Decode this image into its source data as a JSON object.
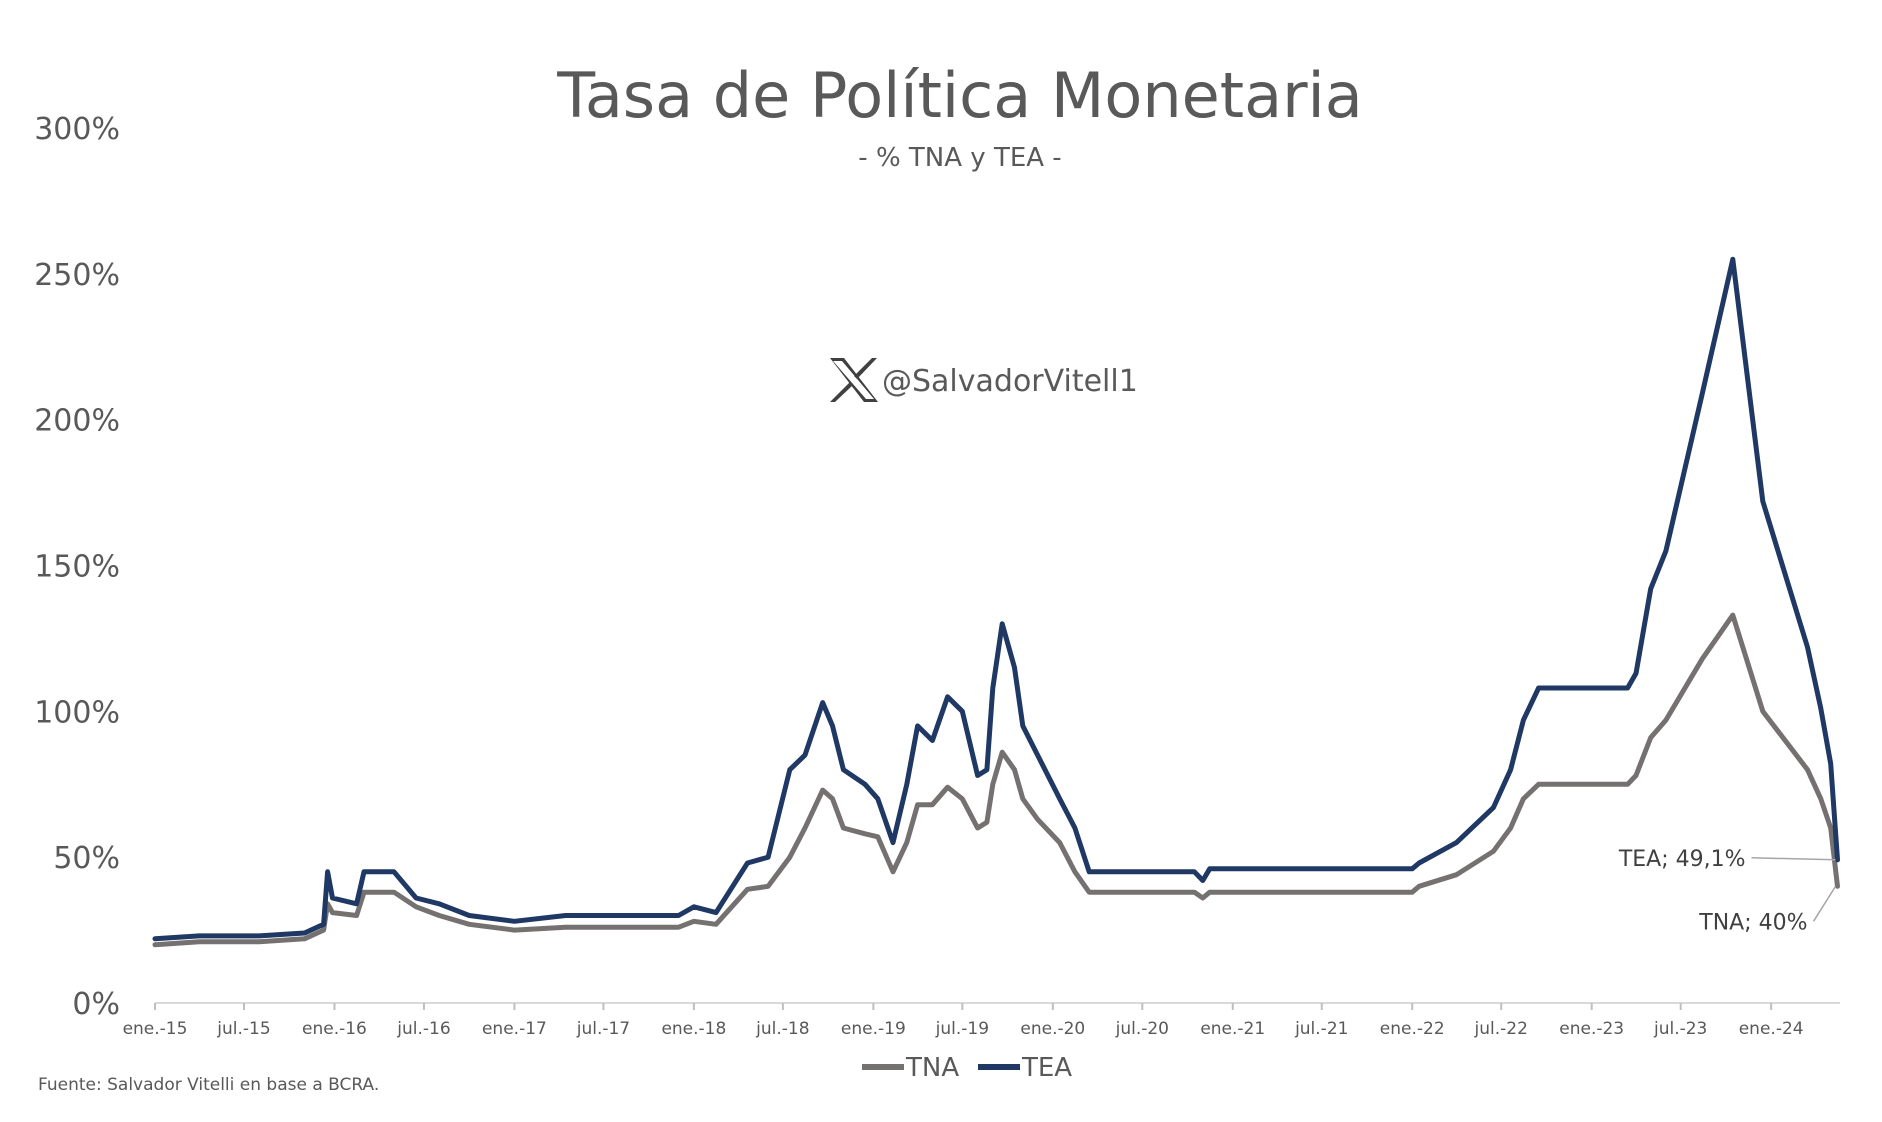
{
  "chart_data": {
    "type": "line",
    "title": "Tasa de Política Monetaria",
    "subtitle": "- % TNA y TEA -",
    "watermark": "@SalvadorVitell1",
    "watermark_icon": "x-logo-icon",
    "source": "Fuente: Salvador Vitelli en base a BCRA.",
    "ylim": [
      0,
      300
    ],
    "yticks": [
      0,
      50,
      100,
      150,
      200,
      250,
      300
    ],
    "ytick_labels": [
      "0%",
      "50%",
      "100%",
      "150%",
      "200%",
      "250%",
      "300%"
    ],
    "xlim": [
      "2015-01-01",
      "2024-05-20"
    ],
    "xticks": [
      {
        "date": "2015-01-01",
        "label": "ene.-15"
      },
      {
        "date": "2015-07-01",
        "label": "jul.-15"
      },
      {
        "date": "2016-01-01",
        "label": "ene.-16"
      },
      {
        "date": "2016-07-01",
        "label": "jul.-16"
      },
      {
        "date": "2017-01-01",
        "label": "ene.-17"
      },
      {
        "date": "2017-07-01",
        "label": "jul.-17"
      },
      {
        "date": "2018-01-01",
        "label": "ene.-18"
      },
      {
        "date": "2018-07-01",
        "label": "jul.-18"
      },
      {
        "date": "2019-01-01",
        "label": "ene.-19"
      },
      {
        "date": "2019-07-01",
        "label": "jul.-19"
      },
      {
        "date": "2020-01-01",
        "label": "ene.-20"
      },
      {
        "date": "2020-07-01",
        "label": "jul.-20"
      },
      {
        "date": "2021-01-01",
        "label": "ene.-21"
      },
      {
        "date": "2021-07-01",
        "label": "jul.-21"
      },
      {
        "date": "2022-01-01",
        "label": "ene.-22"
      },
      {
        "date": "2022-07-01",
        "label": "jul.-22"
      },
      {
        "date": "2023-01-01",
        "label": "ene.-23"
      },
      {
        "date": "2023-07-01",
        "label": "jul.-23"
      },
      {
        "date": "2024-01-01",
        "label": "ene.-24"
      }
    ],
    "legend_position": "bottom-center",
    "grid": false,
    "series": [
      {
        "name": "TNA",
        "color": "#767171",
        "points": [
          [
            "2015-01-01",
            20
          ],
          [
            "2015-04-01",
            21
          ],
          [
            "2015-08-01",
            21
          ],
          [
            "2015-11-01",
            22
          ],
          [
            "2015-12-10",
            25
          ],
          [
            "2015-12-18",
            34
          ],
          [
            "2015-12-28",
            31
          ],
          [
            "2016-02-15",
            30
          ],
          [
            "2016-03-01",
            38
          ],
          [
            "2016-05-01",
            38
          ],
          [
            "2016-06-15",
            33
          ],
          [
            "2016-08-01",
            30
          ],
          [
            "2016-10-01",
            27
          ],
          [
            "2017-01-01",
            25
          ],
          [
            "2017-04-15",
            26
          ],
          [
            "2017-12-01",
            26
          ],
          [
            "2018-01-01",
            28
          ],
          [
            "2018-02-15",
            27
          ],
          [
            "2018-04-20",
            39
          ],
          [
            "2018-06-01",
            40
          ],
          [
            "2018-07-15",
            50
          ],
          [
            "2018-08-15",
            60
          ],
          [
            "2018-09-20",
            73
          ],
          [
            "2018-10-10",
            70
          ],
          [
            "2018-11-01",
            60
          ],
          [
            "2018-12-15",
            58
          ],
          [
            "2019-01-10",
            57
          ],
          [
            "2019-02-10",
            45
          ],
          [
            "2019-03-10",
            55
          ],
          [
            "2019-04-01",
            68
          ],
          [
            "2019-05-01",
            68
          ],
          [
            "2019-06-01",
            74
          ],
          [
            "2019-07-01",
            70
          ],
          [
            "2019-08-01",
            60
          ],
          [
            "2019-08-20",
            62
          ],
          [
            "2019-09-01",
            75
          ],
          [
            "2019-09-20",
            86
          ],
          [
            "2019-10-15",
            80
          ],
          [
            "2019-11-01",
            70
          ],
          [
            "2019-12-01",
            63
          ],
          [
            "2020-01-15",
            55
          ],
          [
            "2020-02-15",
            45
          ],
          [
            "2020-03-15",
            38
          ],
          [
            "2020-10-15",
            38
          ],
          [
            "2020-11-01",
            36
          ],
          [
            "2020-11-15",
            38
          ],
          [
            "2022-01-01",
            38
          ],
          [
            "2022-01-15",
            40
          ],
          [
            "2022-04-01",
            44
          ],
          [
            "2022-06-15",
            52
          ],
          [
            "2022-07-20",
            60
          ],
          [
            "2022-08-15",
            70
          ],
          [
            "2022-09-15",
            75
          ],
          [
            "2023-03-15",
            75
          ],
          [
            "2023-04-01",
            78
          ],
          [
            "2023-05-01",
            91
          ],
          [
            "2023-06-01",
            97
          ],
          [
            "2023-08-14",
            118
          ],
          [
            "2023-10-15",
            133
          ],
          [
            "2023-12-15",
            100
          ],
          [
            "2024-03-15",
            80
          ],
          [
            "2024-04-11",
            70
          ],
          [
            "2024-05-01",
            60
          ],
          [
            "2024-05-15",
            40
          ]
        ]
      },
      {
        "name": "TEA",
        "color": "#203864",
        "points": [
          [
            "2015-01-01",
            22
          ],
          [
            "2015-04-01",
            23
          ],
          [
            "2015-08-01",
            23
          ],
          [
            "2015-11-01",
            24
          ],
          [
            "2015-12-10",
            27
          ],
          [
            "2015-12-18",
            45
          ],
          [
            "2015-12-28",
            36
          ],
          [
            "2016-02-15",
            34
          ],
          [
            "2016-03-01",
            45
          ],
          [
            "2016-05-01",
            45
          ],
          [
            "2016-06-15",
            36
          ],
          [
            "2016-08-01",
            34
          ],
          [
            "2016-10-01",
            30
          ],
          [
            "2017-01-01",
            28
          ],
          [
            "2017-04-15",
            30
          ],
          [
            "2017-12-01",
            30
          ],
          [
            "2018-01-01",
            33
          ],
          [
            "2018-02-15",
            31
          ],
          [
            "2018-04-20",
            48
          ],
          [
            "2018-06-01",
            50
          ],
          [
            "2018-07-15",
            80
          ],
          [
            "2018-08-15",
            85
          ],
          [
            "2018-09-20",
            103
          ],
          [
            "2018-10-10",
            95
          ],
          [
            "2018-11-01",
            80
          ],
          [
            "2018-12-15",
            75
          ],
          [
            "2019-01-10",
            70
          ],
          [
            "2019-02-10",
            55
          ],
          [
            "2019-03-10",
            75
          ],
          [
            "2019-04-01",
            95
          ],
          [
            "2019-05-01",
            90
          ],
          [
            "2019-06-01",
            105
          ],
          [
            "2019-07-01",
            100
          ],
          [
            "2019-08-01",
            78
          ],
          [
            "2019-08-20",
            80
          ],
          [
            "2019-09-01",
            108
          ],
          [
            "2019-09-20",
            130
          ],
          [
            "2019-10-15",
            115
          ],
          [
            "2019-11-01",
            95
          ],
          [
            "2019-12-01",
            85
          ],
          [
            "2020-01-15",
            70
          ],
          [
            "2020-02-15",
            60
          ],
          [
            "2020-03-15",
            45
          ],
          [
            "2020-10-15",
            45
          ],
          [
            "2020-11-01",
            42
          ],
          [
            "2020-11-15",
            46
          ],
          [
            "2022-01-01",
            46
          ],
          [
            "2022-01-15",
            48
          ],
          [
            "2022-04-01",
            55
          ],
          [
            "2022-06-15",
            67
          ],
          [
            "2022-07-20",
            80
          ],
          [
            "2022-08-15",
            97
          ],
          [
            "2022-09-15",
            108
          ],
          [
            "2023-03-15",
            108
          ],
          [
            "2023-04-01",
            113
          ],
          [
            "2023-05-01",
            142
          ],
          [
            "2023-06-01",
            155
          ],
          [
            "2023-08-14",
            209
          ],
          [
            "2023-10-15",
            255
          ],
          [
            "2023-12-15",
            172
          ],
          [
            "2024-03-15",
            122
          ],
          [
            "2024-04-11",
            101
          ],
          [
            "2024-05-01",
            82
          ],
          [
            "2024-05-15",
            49.1
          ]
        ]
      }
    ],
    "annotations": [
      {
        "text": "TEA; 49,1%",
        "series": "TEA",
        "date": "2024-05-15",
        "value": 49.1
      },
      {
        "text": "TNA; 40%",
        "series": "TNA",
        "date": "2024-05-15",
        "value": 40
      }
    ]
  }
}
